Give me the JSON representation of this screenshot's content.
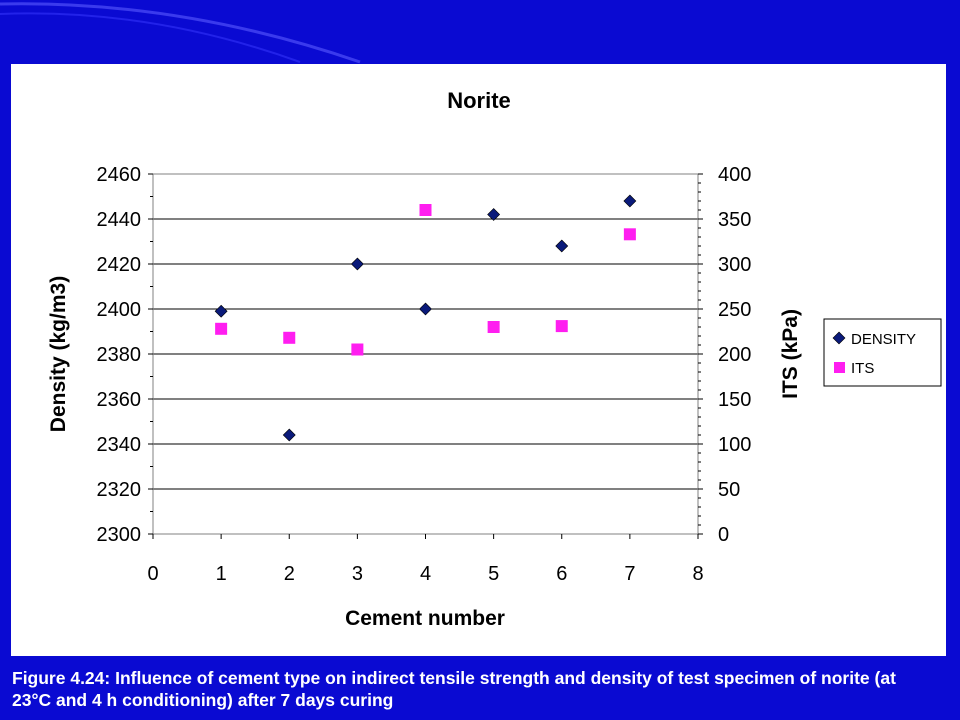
{
  "caption": "Figure 4.24: Influence of cement type on indirect tensile strength and density of test specimen of norite (at 23°C and 4 h conditioning) after 7 days curing",
  "colors": {
    "background": "#0a0ad2",
    "density_marker": "#0a1a7a",
    "its_marker": "#ff1ef0"
  },
  "chart_data": {
    "type": "scatter",
    "title": "Norite",
    "xlabel": "Cement number",
    "ylabel": "Density (kg/m3)",
    "y2label": "ITS (kPa)",
    "xlim": [
      0,
      8
    ],
    "ylim": [
      2300,
      2460
    ],
    "y2lim": [
      0,
      400
    ],
    "x_ticks": [
      0,
      1,
      2,
      3,
      4,
      5,
      6,
      7,
      8
    ],
    "y_ticks": [
      2300,
      2320,
      2340,
      2360,
      2380,
      2400,
      2420,
      2440,
      2460
    ],
    "y2_ticks": [
      0,
      50,
      100,
      150,
      200,
      250,
      300,
      350,
      400
    ],
    "grid": true,
    "legend": "right",
    "series": [
      {
        "name": "DENSITY",
        "axis": "left",
        "marker": "diamond",
        "color": "#0a1a7a",
        "points": [
          [
            1,
            2399
          ],
          [
            2,
            2344
          ],
          [
            3,
            2420
          ],
          [
            4,
            2400
          ],
          [
            5,
            2442
          ],
          [
            6,
            2428
          ],
          [
            7,
            2448
          ]
        ]
      },
      {
        "name": "ITS",
        "axis": "right",
        "marker": "square",
        "color": "#ff1ef0",
        "points": [
          [
            1,
            228
          ],
          [
            2,
            218
          ],
          [
            3,
            205
          ],
          [
            4,
            360
          ],
          [
            5,
            230
          ],
          [
            6,
            231
          ],
          [
            7,
            333
          ]
        ]
      }
    ]
  }
}
